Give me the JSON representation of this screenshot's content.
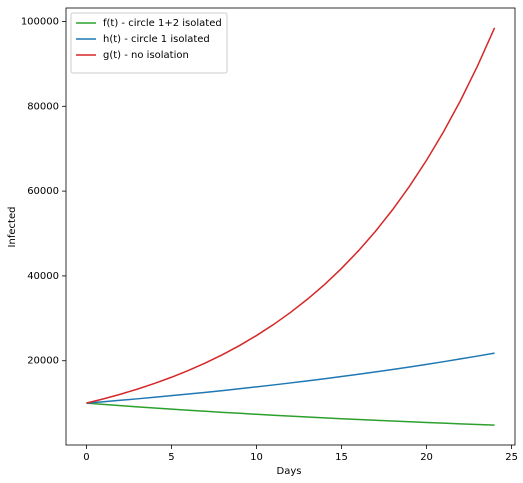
{
  "chart_data": {
    "type": "line",
    "xlabel": "Days",
    "ylabel": "Infected",
    "x": [
      0,
      1,
      2,
      3,
      4,
      5,
      6,
      7,
      8,
      9,
      10,
      11,
      12,
      13,
      14,
      15,
      16,
      17,
      18,
      19,
      20,
      21,
      22,
      23,
      24
    ],
    "series": [
      {
        "name": "f(t) - circle 1+2 isolated",
        "color": "#2ca02c",
        "values": [
          10000,
          9700,
          9409,
          9127,
          8853,
          8587,
          8330,
          8080,
          7837,
          7602,
          7374,
          7153,
          6938,
          6730,
          6528,
          6333,
          6143,
          5958,
          5780,
          5606,
          5438,
          5275,
          5117,
          4963,
          4814
        ]
      },
      {
        "name": "h(t) - circle 1 isolated",
        "color": "#1f77b4",
        "values": [
          10000,
          10330,
          10671,
          11023,
          11387,
          11763,
          12151,
          12552,
          12966,
          13394,
          13836,
          14293,
          14764,
          15252,
          15755,
          16275,
          16812,
          17367,
          17940,
          18532,
          19143,
          19775,
          20428,
          21102,
          21798
        ]
      },
      {
        "name": "g(t) - no isolation",
        "color": "#d62728",
        "values": [
          10000,
          11000,
          12100,
          13310,
          14641,
          16105,
          17716,
          19487,
          21436,
          23579,
          25937,
          28531,
          31384,
          34523,
          37975,
          41772,
          45950,
          50545,
          55599,
          61159,
          67275,
          74002,
          81403,
          89543,
          98497
        ]
      }
    ],
    "xlim": [
      -1.2,
      25.2
    ],
    "xticks": [
      0,
      5,
      10,
      15,
      20,
      25
    ],
    "ylim": [
      130,
      103180
    ],
    "yticks": [
      20000,
      40000,
      60000,
      80000,
      100000
    ],
    "grid": false,
    "legend": "upper left"
  }
}
